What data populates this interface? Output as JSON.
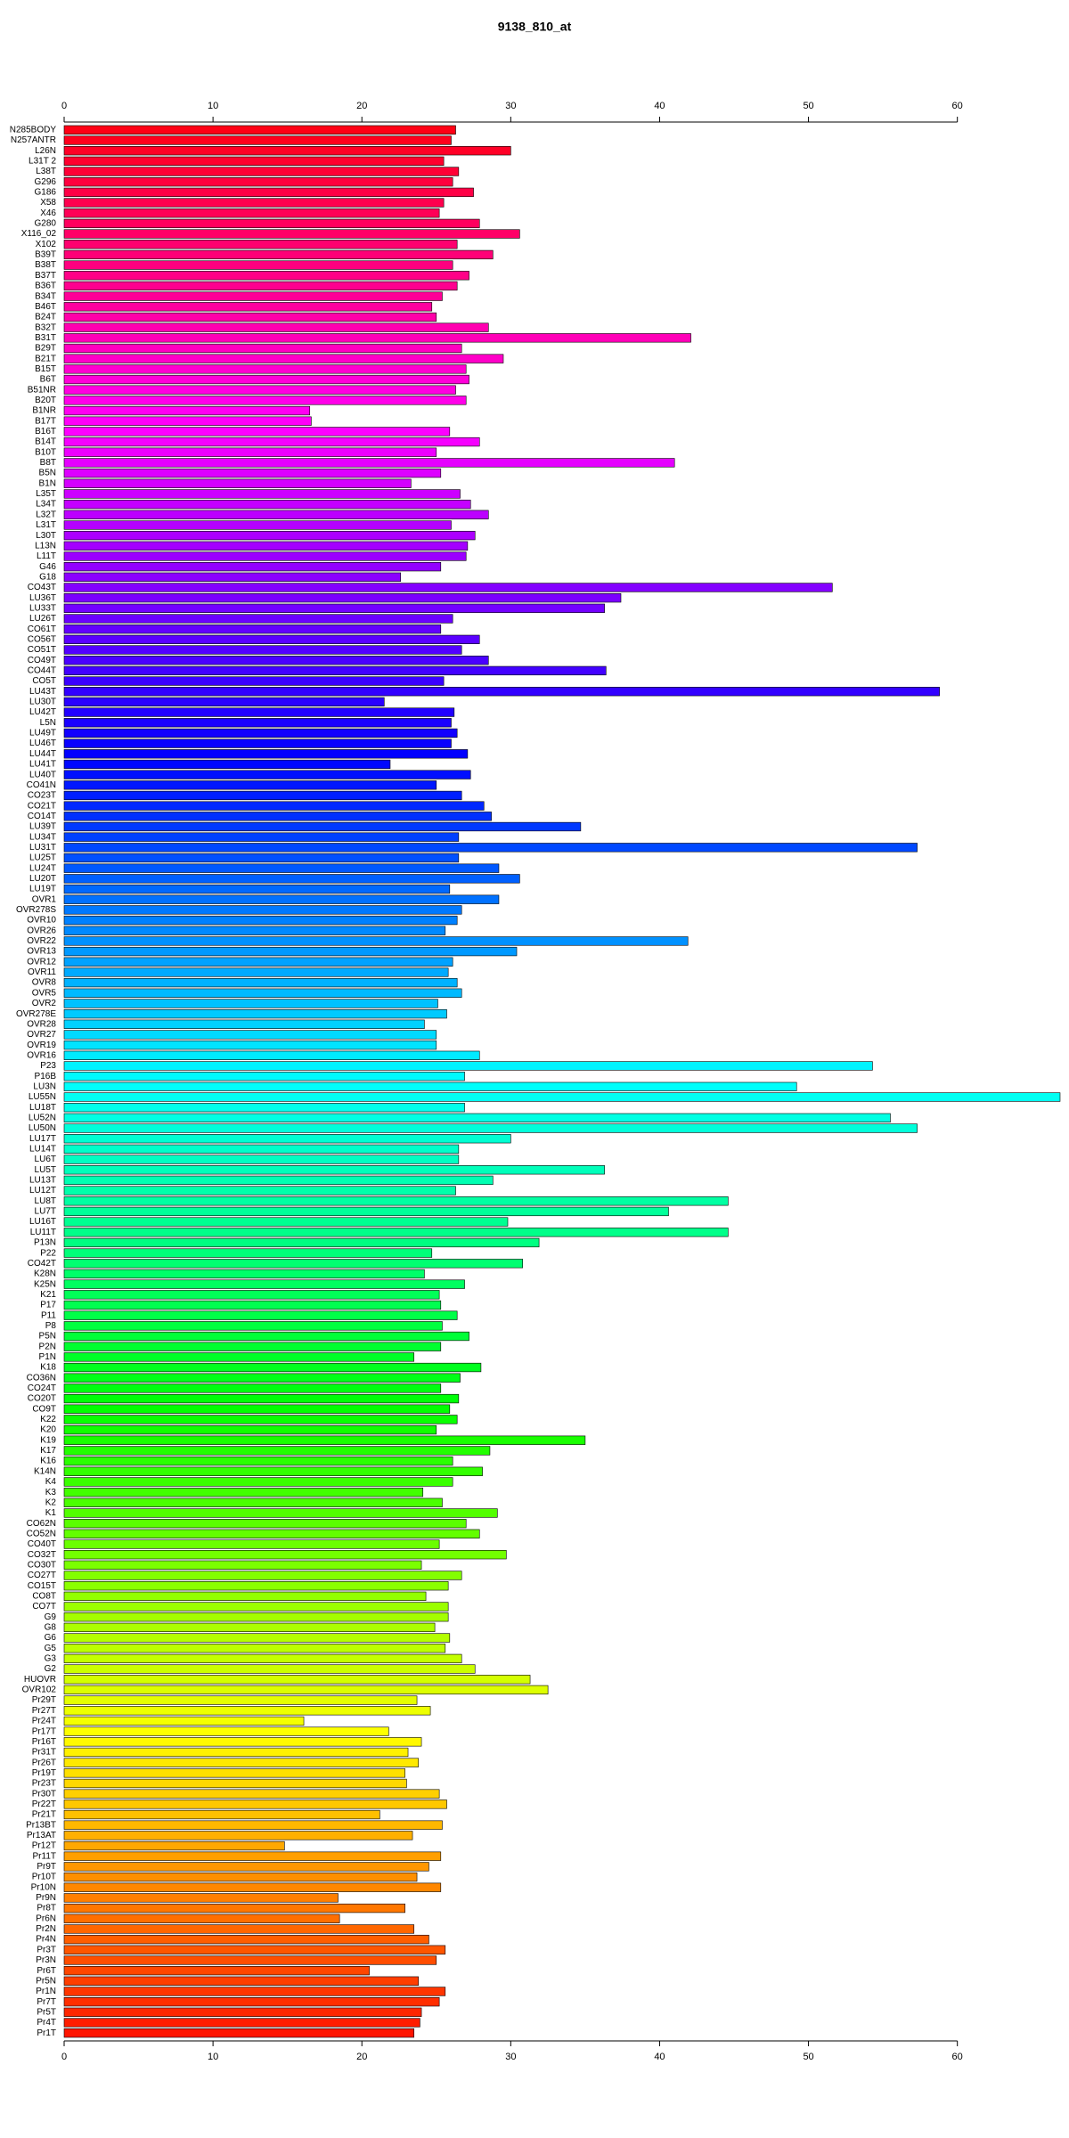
{
  "chart_data": {
    "type": "bar",
    "orientation": "horizontal",
    "title": "9138_810_at",
    "categories": [
      "N285BODY",
      "N257ANTR",
      "L26N",
      "L31T 2",
      "L38T",
      "G296",
      "G186",
      "X58",
      "X46",
      "G280",
      "X116_02",
      "X102",
      "B39T",
      "B38T",
      "B37T",
      "B36T",
      "B34T",
      "B46T",
      "B24T",
      "B32T",
      "B31T",
      "B29T",
      "B21T",
      "B15T",
      "B6T",
      "B51NR",
      "B20T",
      "B1NR",
      "B17T",
      "B16T",
      "B14T",
      "B10T",
      "B8T",
      "B5N",
      "B1N",
      "L35T",
      "L34T",
      "L32T",
      "L31T",
      "L30T",
      "L13N",
      "L11T",
      "G46",
      "G18",
      "CO43T",
      "LU36T",
      "LU33T",
      "LU26T",
      "CO61T",
      "CO56T",
      "CO51T",
      "CO49T",
      "CO44T",
      "CO5T",
      "LU43T",
      "LU30T",
      "LU42T",
      "L5N",
      "LU49T",
      "LU46T",
      "LU44T",
      "LU41T",
      "LU40T",
      "CO41N",
      "CO23T",
      "CO21T",
      "CO14T",
      "LU39T",
      "LU34T",
      "LU31T",
      "LU25T",
      "LU24T",
      "LU20T",
      "LU19T",
      "OVR1",
      "OVR278S",
      "OVR10",
      "OVR26",
      "OVR22",
      "OVR13",
      "OVR12",
      "OVR11",
      "OVR8",
      "OVR5",
      "OVR2",
      "OVR278E",
      "OVR28",
      "OVR27",
      "OVR19",
      "OVR16",
      "P23",
      "P16B",
      "LU3N",
      "LU55N",
      "LU18T",
      "LU52N",
      "LU50N",
      "LU17T",
      "LU14T",
      "LU6T",
      "LU5T",
      "LU13T",
      "LU12T",
      "LU8T",
      "LU7T",
      "LU16T",
      "LU11T",
      "P13N",
      "P22",
      "CO42T",
      "K28N",
      "K25N",
      "K21",
      "P17",
      "P11",
      "P8",
      "P5N",
      "P2N",
      "P1N",
      "K18",
      "CO36N",
      "CO24T",
      "CO20T",
      "CO9T",
      "K22",
      "K20",
      "K19",
      "K17",
      "K16",
      "K14N",
      "K4",
      "K3",
      "K2",
      "K1",
      "CO62N",
      "CO52N",
      "CO40T",
      "CO32T",
      "CO30T",
      "CO27T",
      "CO15T",
      "CO8T",
      "CO7T",
      "G9",
      "G8",
      "G6",
      "G5",
      "G3",
      "G2",
      "HUOVR",
      "OVR102",
      "Pr29T",
      "Pr27T",
      "Pr24T",
      "Pr17T",
      "Pr16T",
      "Pr31T",
      "Pr26T",
      "Pr19T",
      "Pr23T",
      "Pr30T",
      "Pr22T",
      "Pr21T",
      "Pr13BT",
      "Pr13AT",
      "Pr12T",
      "Pr11T",
      "Pr9T",
      "Pr10T",
      "Pr10N",
      "Pr9N",
      "Pr8T",
      "Pr6N",
      "Pr2N",
      "Pr4N",
      "Pr3T",
      "Pr3N",
      "Pr6T",
      "Pr5N",
      "Pr1N",
      "Pr7T",
      "Pr5T",
      "Pr4T",
      "Pr1T"
    ],
    "values": [
      26.3,
      26.0,
      30.0,
      25.5,
      26.5,
      26.1,
      27.5,
      25.5,
      25.2,
      27.9,
      30.6,
      26.4,
      28.8,
      26.1,
      27.2,
      26.4,
      25.4,
      24.7,
      25.0,
      28.5,
      42.1,
      26.7,
      29.5,
      27.0,
      27.2,
      26.3,
      27.0,
      16.5,
      16.6,
      25.9,
      27.9,
      25.0,
      41.0,
      25.3,
      23.3,
      26.6,
      27.3,
      28.5,
      26.0,
      27.6,
      27.1,
      27.0,
      25.3,
      22.6,
      51.6,
      37.4,
      36.3,
      26.1,
      25.3,
      27.9,
      26.7,
      28.5,
      36.4,
      25.5,
      58.8,
      21.5,
      26.2,
      26.0,
      26.4,
      26.0,
      27.1,
      21.9,
      27.3,
      25.0,
      26.7,
      28.2,
      28.7,
      34.7,
      26.5,
      57.3,
      26.5,
      29.2,
      30.6,
      25.9,
      29.2,
      26.7,
      26.4,
      25.6,
      41.9,
      30.4,
      26.1,
      25.8,
      26.4,
      26.7,
      25.1,
      25.7,
      24.2,
      25.0,
      25.0,
      27.9,
      54.3,
      26.9,
      49.2,
      66.9,
      26.9,
      55.5,
      57.3,
      30.0,
      26.5,
      26.5,
      36.3,
      28.8,
      26.3,
      44.6,
      40.6,
      29.8,
      44.6,
      31.9,
      24.7,
      30.8,
      24.2,
      26.9,
      25.2,
      25.3,
      26.4,
      25.4,
      27.2,
      25.3,
      23.5,
      28.0,
      26.6,
      25.3,
      26.5,
      25.9,
      26.4,
      25.0,
      35.0,
      28.6,
      26.1,
      28.1,
      26.1,
      24.1,
      25.4,
      29.1,
      27.0,
      27.9,
      25.2,
      29.7,
      24.0,
      26.7,
      25.8,
      24.3,
      25.8,
      25.8,
      24.9,
      25.9,
      25.6,
      26.7,
      27.6,
      31.3,
      32.5,
      23.7,
      24.6,
      16.1,
      21.8,
      24.0,
      23.1,
      23.8,
      22.9,
      23.0,
      25.2,
      25.7,
      21.2,
      25.4,
      23.4,
      14.8,
      25.3,
      24.5,
      23.7,
      25.3,
      18.4,
      22.9,
      18.5,
      23.5,
      24.5,
      25.6,
      25.0,
      20.5,
      23.8,
      25.6,
      25.2,
      24.0,
      23.9,
      23.5
    ],
    "color_hue_range": [
      355,
      5
    ],
    "xlim": [
      0,
      67.2
    ],
    "xticks": [
      0,
      10,
      20,
      30,
      40,
      50,
      60
    ]
  }
}
